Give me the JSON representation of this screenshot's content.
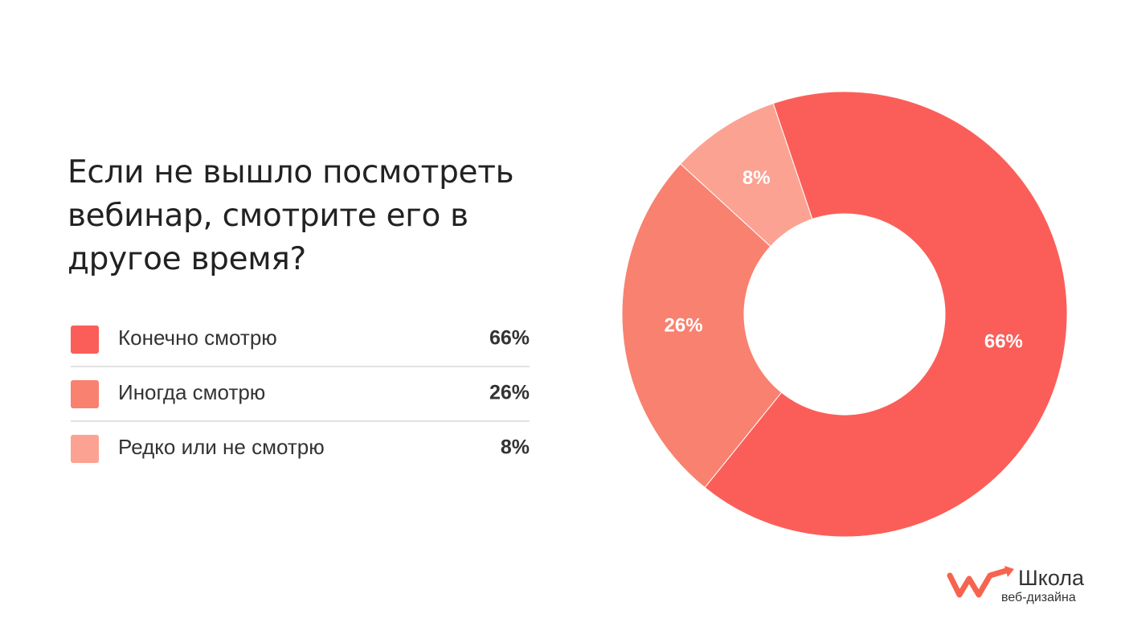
{
  "chart_data": {
    "type": "pie",
    "donut": true,
    "title": "Если не вышло посмотреть вебинар, смотрите его в другое время?",
    "categories": [
      "Конечно смотрю",
      "Иногда смотрю",
      "Редко или не смотрю"
    ],
    "values": [
      66,
      26,
      8
    ],
    "value_labels": [
      "66%",
      "26%",
      "8%"
    ],
    "colors": [
      "#fb5e59",
      "#f9816f",
      "#fca292"
    ]
  },
  "logo": {
    "title": "Школа",
    "subtitle": "веб-дизайна"
  }
}
